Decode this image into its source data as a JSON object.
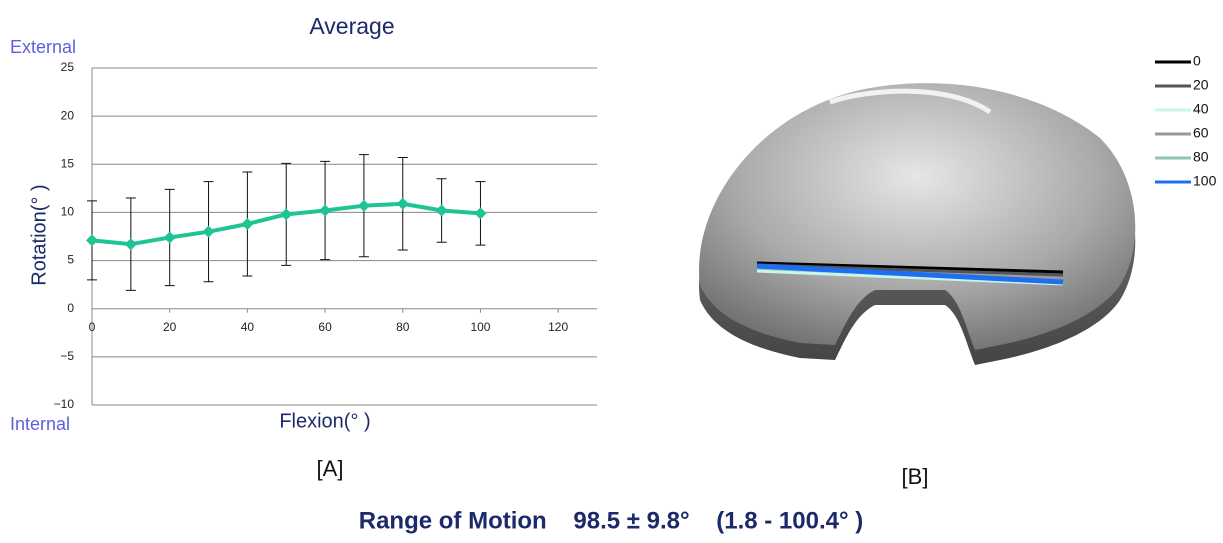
{
  "chart_data": {
    "type": "line",
    "title": "Average",
    "x_label": "Flexion(° )",
    "y_label": "Rotation(° )",
    "annotations": {
      "top": "External",
      "bottom": "Internal"
    },
    "x": [
      0,
      10,
      20,
      30,
      40,
      50,
      60,
      70,
      80,
      90,
      100
    ],
    "series": [
      {
        "name": "Average",
        "color": "#1fc495",
        "values": [
          7.1,
          6.7,
          7.4,
          8.0,
          8.8,
          9.8,
          10.2,
          10.7,
          10.9,
          10.2,
          9.9
        ],
        "errors": [
          4.1,
          4.8,
          5.0,
          5.2,
          5.4,
          5.3,
          5.1,
          5.3,
          4.8,
          3.3,
          3.3
        ]
      }
    ],
    "xlim": [
      0,
      130
    ],
    "xticks": [
      0,
      20,
      40,
      60,
      80,
      100,
      120
    ],
    "ylim": [
      -10,
      25
    ],
    "yticks": [
      {
        "value": -10,
        "label": "−10"
      },
      {
        "value": -5,
        "label": "−5"
      },
      0,
      5,
      10,
      15,
      20,
      25
    ],
    "grid": true
  },
  "panel_labels": [
    "[A]",
    "[B]"
  ],
  "panel_b": {
    "legend": [
      {
        "label": "0",
        "color": "#000000"
      },
      {
        "label": "20",
        "color": "#555555"
      },
      {
        "label": "40",
        "color": "#c8f5ec"
      },
      {
        "label": "60",
        "color": "#999999"
      },
      {
        "label": "80",
        "color": "#8cc7b2"
      },
      {
        "label": "100",
        "color": "#1e6ff0"
      }
    ]
  },
  "footer": "Range of Motion    98.5 ± 9.8°    (1.8 - 100.4° )"
}
